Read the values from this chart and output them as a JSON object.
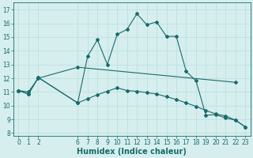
{
  "line1_x": [
    0,
    1,
    2,
    6,
    7,
    8,
    9,
    10,
    11,
    12,
    13,
    14,
    15,
    16,
    17,
    18,
    19,
    20,
    21,
    22,
    23
  ],
  "line1_y": [
    11.1,
    10.85,
    12.05,
    10.2,
    13.6,
    14.8,
    13.0,
    15.2,
    15.55,
    16.7,
    15.9,
    16.1,
    15.05,
    15.05,
    12.5,
    11.8,
    9.3,
    9.35,
    9.1,
    8.95,
    8.45
  ],
  "line2_x": [
    0,
    1,
    2,
    6,
    22
  ],
  "line2_y": [
    11.1,
    11.0,
    12.0,
    12.8,
    11.7
  ],
  "line3_x": [
    0,
    1,
    2,
    6,
    7,
    8,
    9,
    10,
    11,
    12,
    13,
    14,
    15,
    16,
    17,
    18,
    19,
    20,
    21,
    22,
    23
  ],
  "line3_y": [
    11.1,
    10.85,
    12.05,
    10.2,
    10.5,
    10.8,
    11.05,
    11.3,
    11.1,
    11.05,
    10.95,
    10.85,
    10.65,
    10.45,
    10.2,
    9.95,
    9.65,
    9.4,
    9.25,
    8.95,
    8.45
  ],
  "xlabel": "Humidex (Indice chaleur)",
  "xticks": [
    0,
    1,
    2,
    6,
    7,
    8,
    9,
    10,
    11,
    12,
    13,
    14,
    15,
    16,
    17,
    18,
    19,
    20,
    21,
    22,
    23
  ],
  "yticks": [
    8,
    9,
    10,
    11,
    12,
    13,
    14,
    15,
    16,
    17
  ],
  "xlim": [
    -0.5,
    23.5
  ],
  "ylim": [
    7.8,
    17.5
  ],
  "line_color": "#1a6b6b",
  "bg_color": "#d6eeee",
  "grid_color": "#b8dede",
  "tick_fontsize": 5.5,
  "xlabel_fontsize": 7.0
}
